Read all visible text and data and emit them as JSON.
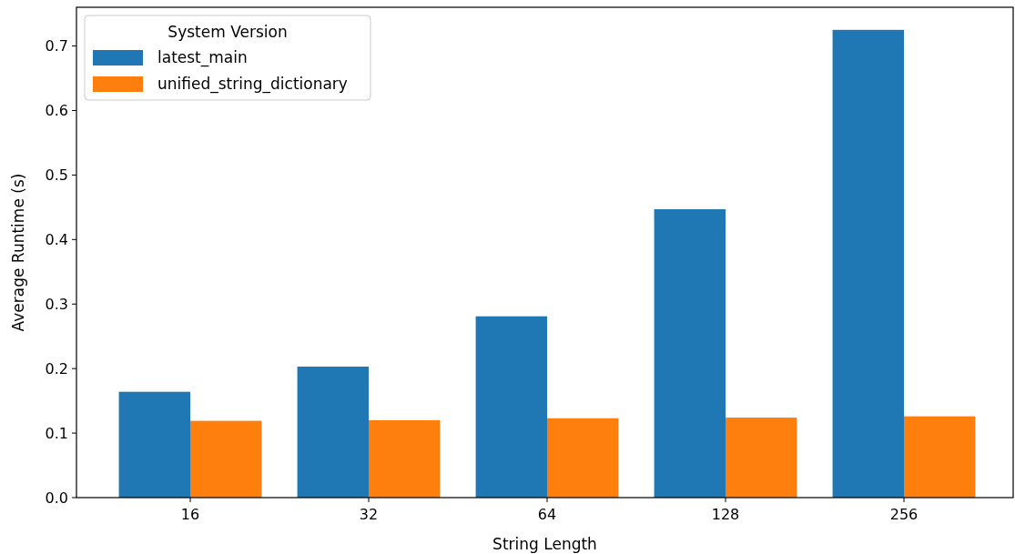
{
  "chart_data": {
    "type": "bar",
    "xlabel": "String Length",
    "ylabel": "Average Runtime (s)",
    "legend_title": "System Version",
    "legend": "top left",
    "grid": false,
    "categories": [
      "16",
      "32",
      "64",
      "128",
      "256"
    ],
    "ylim": [
      0,
      0.76
    ],
    "yticks": [
      {
        "value": 0,
        "label": "0.0"
      },
      0.1,
      0.2,
      0.3,
      0.4,
      0.5,
      0.6,
      0.7
    ],
    "series": [
      {
        "name": "latest_main",
        "color": "#1f77b4",
        "values": [
          0.164,
          0.203,
          0.281,
          0.447,
          0.725
        ]
      },
      {
        "name": "unified_string_dictionary",
        "color": "#ff7f0e",
        "values": [
          0.119,
          0.12,
          0.123,
          0.124,
          0.126
        ]
      }
    ]
  }
}
